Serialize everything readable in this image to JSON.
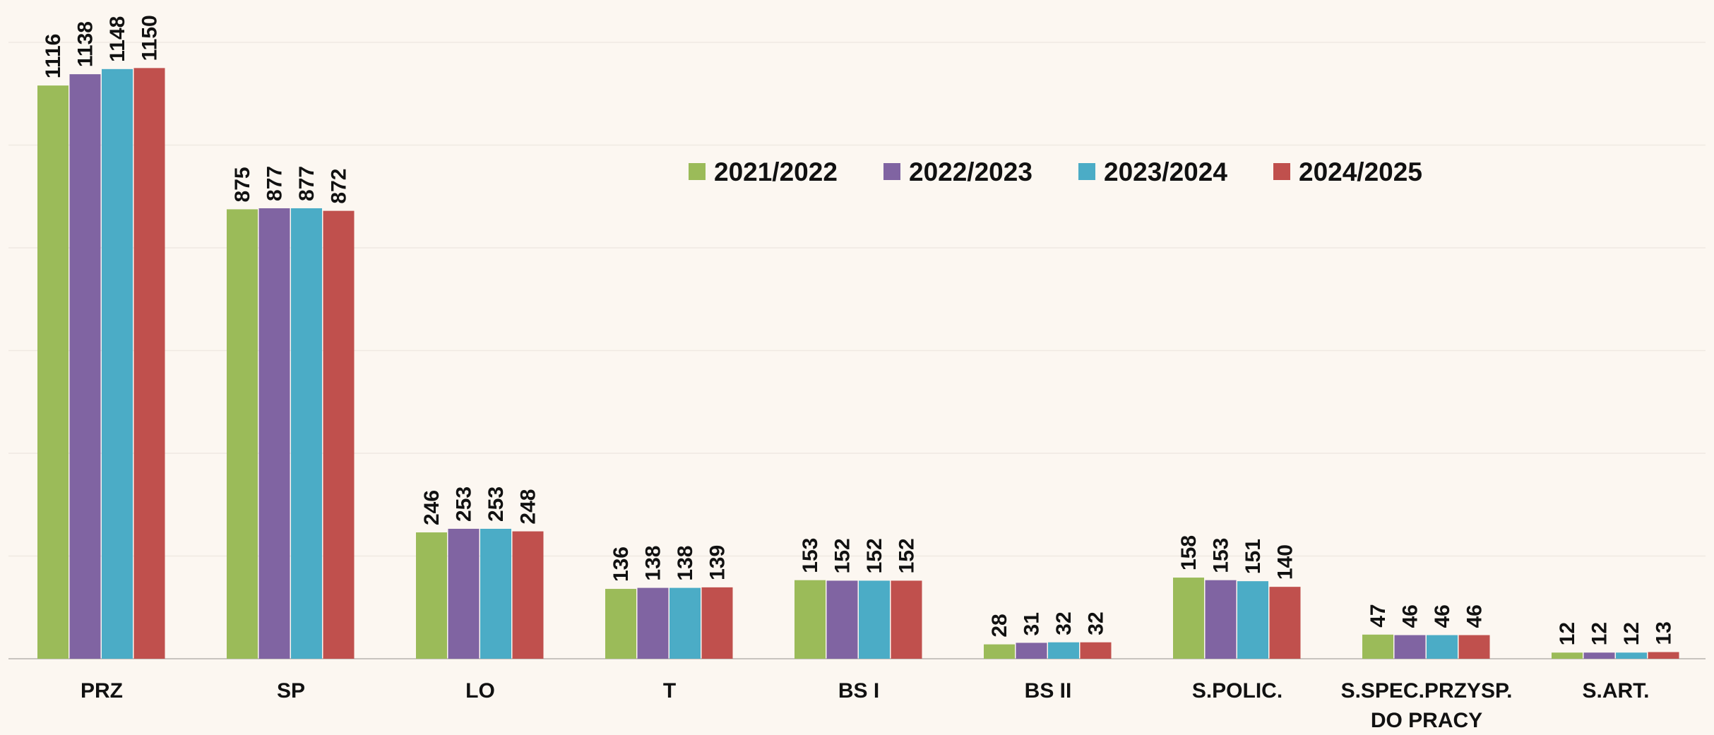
{
  "chart_data": {
    "type": "bar",
    "categories": [
      "PRZ",
      "SP",
      "LO",
      "T",
      "BS I",
      "BS II",
      "S.POLIC.",
      "S.SPEC.PRZYSP.\nDO PRACY",
      "S.ART."
    ],
    "series": [
      {
        "name": "2021/2022",
        "color": "#9bbb59",
        "values": [
          1116,
          875,
          246,
          136,
          153,
          28,
          158,
          47,
          12
        ]
      },
      {
        "name": "2022/2023",
        "color": "#8064a2",
        "values": [
          1138,
          877,
          253,
          138,
          152,
          31,
          153,
          46,
          12
        ]
      },
      {
        "name": "2023/2024",
        "color": "#4bacc6",
        "values": [
          1148,
          877,
          253,
          138,
          152,
          32,
          151,
          46,
          12
        ]
      },
      {
        "name": "2024/2025",
        "color": "#c0504d",
        "values": [
          1150,
          872,
          248,
          139,
          152,
          32,
          140,
          46,
          13
        ]
      }
    ],
    "ylim": [
      0,
      1200
    ],
    "yticks": [
      0,
      200,
      400,
      600,
      800,
      1000,
      1200
    ],
    "grid": true,
    "legend": "top"
  }
}
